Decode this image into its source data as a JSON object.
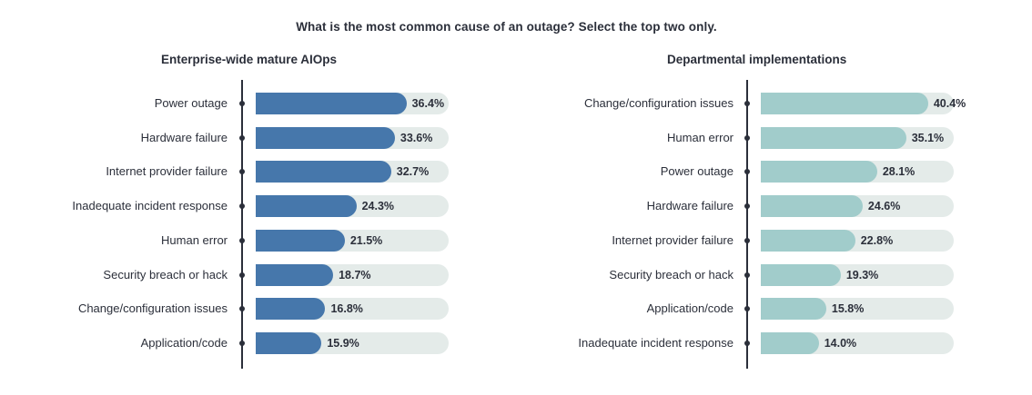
{
  "title": "What is the most common cause of an outage? Select the top two only.",
  "colors": {
    "left_bar": "#4677ab",
    "right_bar": "#a1cccb",
    "track": "#e4ebe9",
    "text": "#2b2f3a"
  },
  "chart_data": [
    {
      "type": "bar",
      "orientation": "horizontal",
      "title": "Enterprise-wide mature AIOps",
      "xlim": [
        0,
        100
      ],
      "categories": [
        "Power outage",
        "Hardware failure",
        "Internet provider failure",
        "Inadequate incident response",
        "Human error",
        "Security breach or hack",
        "Change/configuration issues",
        "Application/code"
      ],
      "values": [
        36.4,
        33.6,
        32.7,
        24.3,
        21.5,
        18.7,
        16.8,
        15.9
      ],
      "value_labels": [
        "36.4%",
        "33.6%",
        "32.7%",
        "24.3%",
        "21.5%",
        "18.7%",
        "16.8%",
        "15.9%"
      ]
    },
    {
      "type": "bar",
      "orientation": "horizontal",
      "title": "Departmental implementations",
      "xlim": [
        0,
        100
      ],
      "categories": [
        "Change/configuration issues",
        "Human error",
        "Power outage",
        "Hardware failure",
        "Internet provider failure",
        "Security breach or hack",
        "Application/code",
        "Inadequate incident response"
      ],
      "values": [
        40.4,
        35.1,
        28.1,
        24.6,
        22.8,
        19.3,
        15.8,
        14.0
      ],
      "value_labels": [
        "40.4%",
        "35.1%",
        "28.1%",
        "24.6%",
        "22.8%",
        "19.3%",
        "15.8%",
        "14.0%"
      ]
    }
  ]
}
